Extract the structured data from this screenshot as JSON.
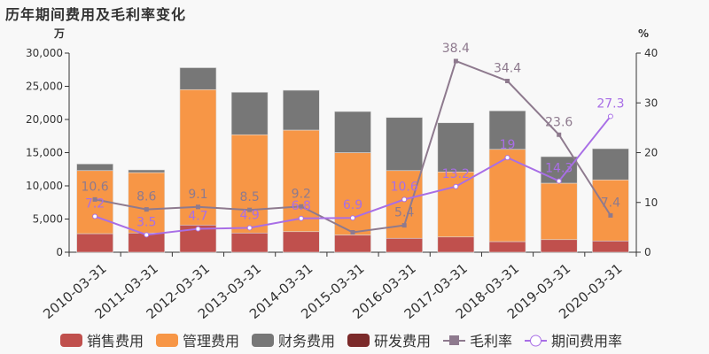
{
  "chart_data": {
    "type": "bar",
    "title": "历年期间费用及毛利率变化",
    "y_left_unit": "万",
    "y_right_unit": "%",
    "ylim_left": [
      0,
      30000
    ],
    "ylim_right": [
      0,
      40
    ],
    "yticks_left": [
      "0",
      "5,000",
      "10,000",
      "15,000",
      "20,000",
      "25,000",
      "30,000"
    ],
    "yticks_right": [
      "0",
      "10",
      "20",
      "30",
      "40"
    ],
    "categories": [
      "2010-03-31",
      "2011-03-31",
      "2012-03-31",
      "2013-03-31",
      "2014-03-31",
      "2015-03-31",
      "2016-03-31",
      "2017-03-31",
      "2018-03-31",
      "2019-03-31",
      "2020-03-31"
    ],
    "series": [
      {
        "name": "销售费用",
        "type": "bar",
        "color": "#c0504d",
        "values": [
          2800,
          2900,
          4100,
          2900,
          3100,
          2600,
          2100,
          2300,
          1600,
          1900,
          1700
        ]
      },
      {
        "name": "管理费用",
        "type": "bar",
        "color": "#f79646",
        "values": [
          9500,
          9100,
          20400,
          14800,
          15300,
          12400,
          10200,
          9800,
          13900,
          8500,
          9200
        ]
      },
      {
        "name": "财务费用",
        "type": "bar",
        "color": "#777777",
        "values": [
          1000,
          400,
          3300,
          6400,
          6000,
          6200,
          8000,
          7400,
          5800,
          4000,
          4700
        ]
      },
      {
        "name": "研发费用",
        "type": "bar",
        "color": "#7b2a2a",
        "values": [
          0,
          0,
          0,
          0,
          0,
          0,
          0,
          0,
          0,
          0,
          0
        ]
      },
      {
        "name": "毛利率",
        "type": "line",
        "axis": "right",
        "color": "#8e7a8e",
        "values": [
          10.6,
          8.6,
          9.1,
          8.5,
          9.2,
          4.0,
          5.4,
          38.4,
          34.4,
          23.6,
          7.4
        ],
        "labels": [
          "10.6",
          "8.6",
          "9.1",
          "8.5",
          "9.2",
          "",
          "5.4",
          "38.4",
          "34.4",
          "23.6",
          "7.4"
        ]
      },
      {
        "name": "期间费用率",
        "type": "line",
        "axis": "right",
        "color": "#a86ee6",
        "values": [
          7.2,
          3.5,
          4.7,
          4.9,
          6.8,
          6.9,
          10.6,
          13.2,
          19,
          14.3,
          27.3
        ],
        "labels": [
          "7.2",
          "3.5",
          "4.7",
          "4.9",
          "6.8",
          "6.9",
          "10.6",
          "13.2",
          "19",
          "14.3",
          "27.3"
        ]
      }
    ],
    "legend": "bottom"
  }
}
